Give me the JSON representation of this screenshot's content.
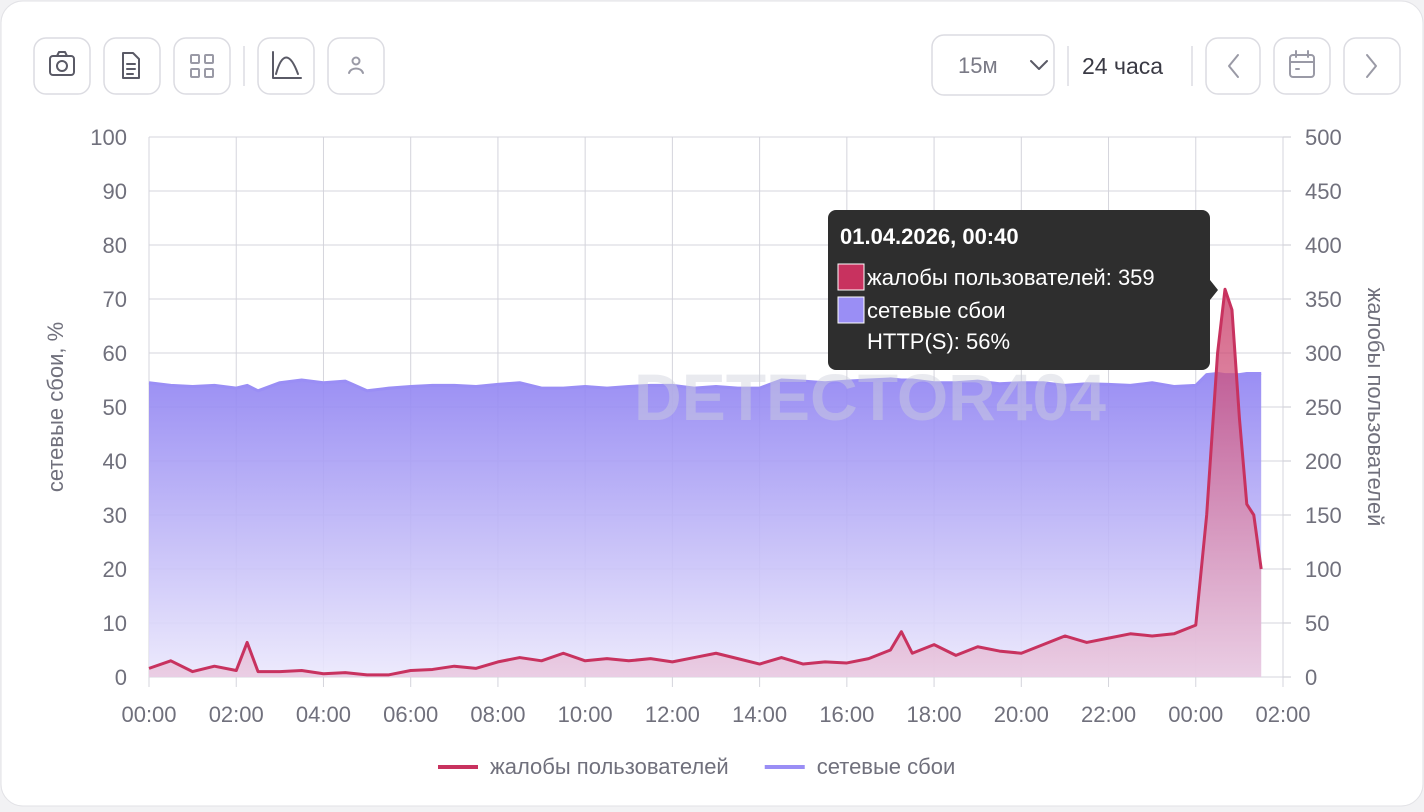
{
  "toolbar": {
    "interval": "15м",
    "range": "24 часа"
  },
  "watermark": "DETECTOR404",
  "tooltip": {
    "title": "01.04.2026, 00:40",
    "lines": [
      "жалобы пользователей: 359",
      "сетевые сбои",
      "HTTP(S): 56%"
    ]
  },
  "chart_data": {
    "type": "area",
    "y_label": "сетевые сбои, %",
    "y2_label": "жалобы пользователей",
    "x": [
      0,
      0.5,
      1,
      1.5,
      2,
      2.25,
      2.5,
      3,
      3.5,
      4,
      4.5,
      5,
      5.5,
      6,
      6.5,
      7,
      7.5,
      8,
      8.5,
      9,
      9.5,
      10,
      10.5,
      11,
      11.5,
      12,
      12.5,
      13,
      13.5,
      14,
      14.5,
      15,
      15.5,
      16,
      16.5,
      17,
      17.25,
      17.5,
      18,
      18.5,
      19,
      19.5,
      20,
      20.5,
      21,
      21.5,
      22,
      22.5,
      23,
      23.5,
      24,
      24.25,
      24.5,
      24.67,
      24.83,
      25,
      25.17,
      25.33,
      25.5
    ],
    "xlim": [
      0,
      26
    ],
    "xticks": [
      {
        "value": 0,
        "label": "00:00"
      },
      {
        "value": 2,
        "label": "02:00"
      },
      {
        "value": 4,
        "label": "04:00"
      },
      {
        "value": 6,
        "label": "06:00"
      },
      {
        "value": 8,
        "label": "08:00"
      },
      {
        "value": 10,
        "label": "10:00"
      },
      {
        "value": 12,
        "label": "12:00"
      },
      {
        "value": 14,
        "label": "14:00"
      },
      {
        "value": 16,
        "label": "16:00"
      },
      {
        "value": 18,
        "label": "18:00"
      },
      {
        "value": 20,
        "label": "20:00"
      },
      {
        "value": 22,
        "label": "22:00"
      },
      {
        "value": 24,
        "label": "00:00"
      },
      {
        "value": 26,
        "label": "02:00"
      }
    ],
    "ylim": [
      0,
      100
    ],
    "yticks": [
      0,
      10,
      20,
      30,
      40,
      50,
      60,
      70,
      80,
      90,
      100
    ],
    "y2lim": [
      0,
      500
    ],
    "y2ticks": [
      0,
      50,
      100,
      150,
      200,
      250,
      300,
      350,
      400,
      450,
      500
    ],
    "grid": true,
    "series": [
      {
        "name": "сетевые сбои",
        "color": "#9a8ef5",
        "values": [
          54.5,
          54,
          53.8,
          54,
          53.5,
          54,
          53,
          54.5,
          55,
          54.5,
          54.8,
          53,
          53.5,
          53.8,
          54,
          54,
          53.8,
          54.2,
          54.5,
          53.5,
          53.5,
          53.8,
          53.5,
          53.8,
          54,
          54,
          53.5,
          53.8,
          53.5,
          53.5,
          55,
          54.8,
          54.5,
          54.8,
          55,
          55.2,
          55,
          55,
          54.5,
          54.5,
          54.8,
          54.3,
          54.5,
          54.5,
          54,
          54.3,
          54.2,
          54,
          54.5,
          53.8,
          54,
          56,
          56.2,
          56,
          56,
          56,
          56.2,
          56.2,
          56.2
        ]
      },
      {
        "name": "жалобы пользователей",
        "color": "#c8325f",
        "axis": "y2",
        "values": [
          8,
          15,
          5,
          10,
          6,
          32,
          5,
          5,
          6,
          3,
          4,
          2,
          2,
          6,
          7,
          10,
          8,
          14,
          18,
          15,
          22,
          15,
          17,
          15,
          17,
          14,
          18,
          22,
          17,
          12,
          18,
          12,
          14,
          13,
          17,
          25,
          42,
          22,
          30,
          20,
          28,
          24,
          22,
          30,
          38,
          32,
          36,
          40,
          38,
          40,
          48,
          150,
          300,
          359,
          340,
          240,
          160,
          150,
          100
        ]
      }
    ]
  }
}
